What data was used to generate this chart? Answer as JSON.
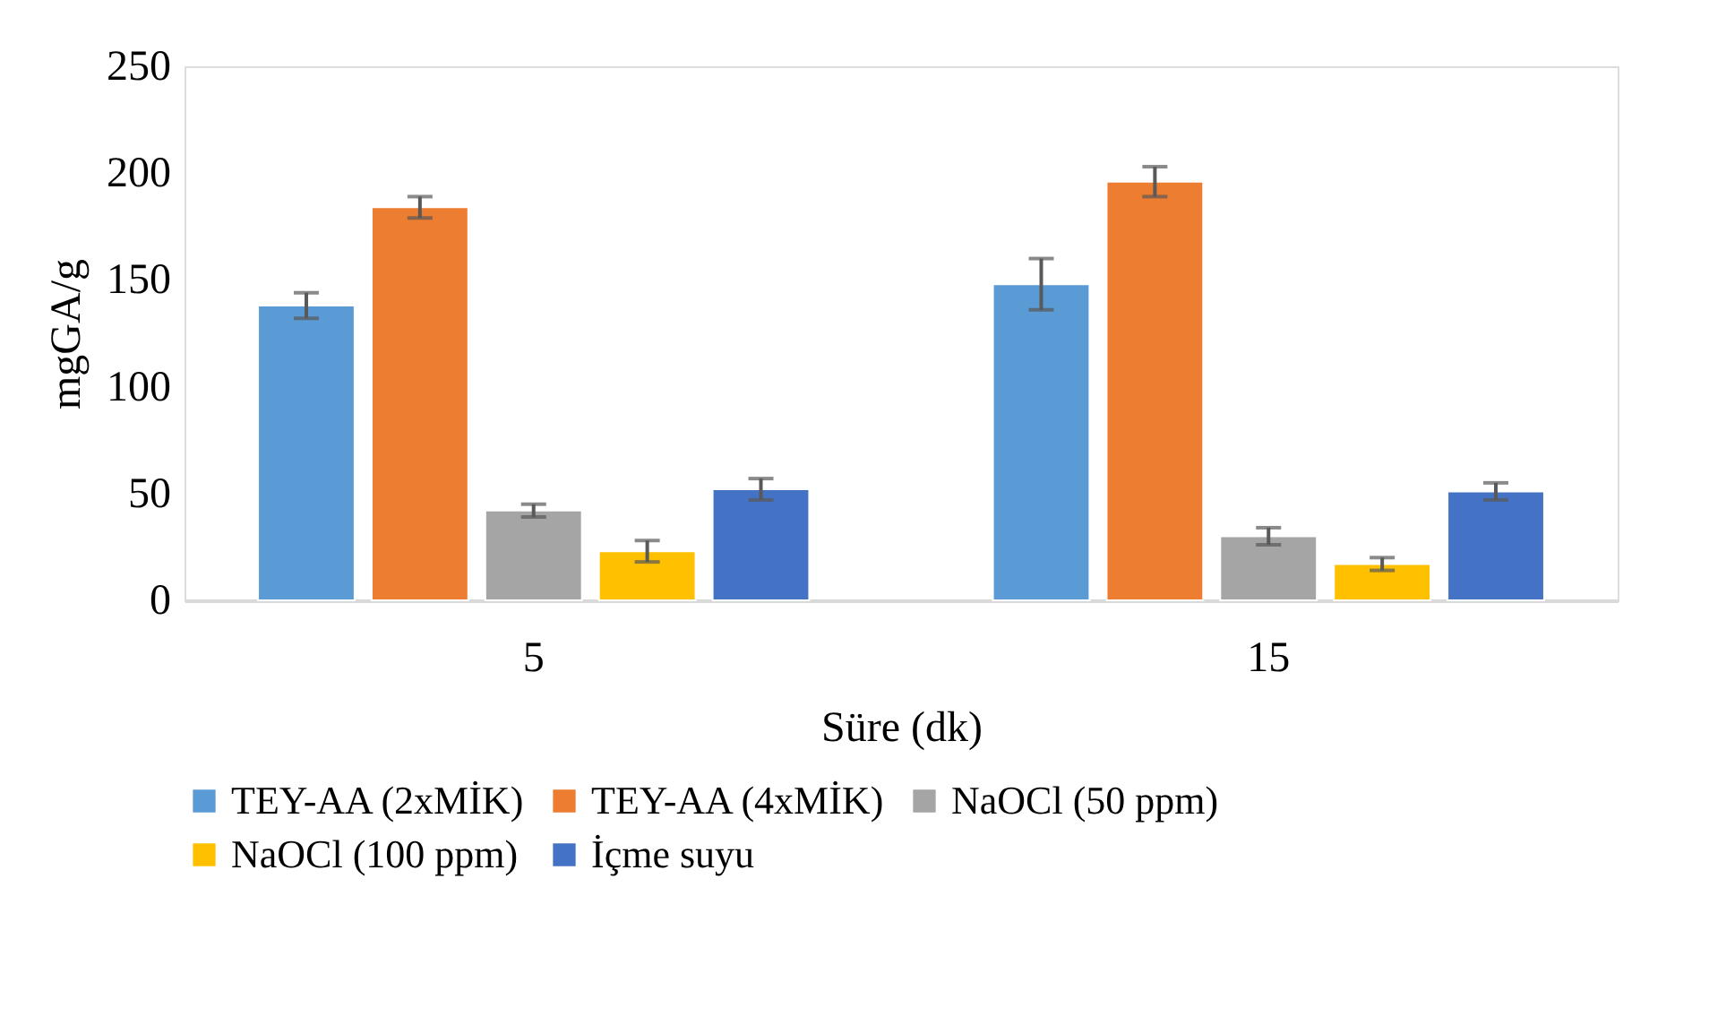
{
  "chart_data": {
    "type": "bar",
    "xlabel": "Süre (dk)",
    "ylabel": "mgGA/g",
    "categories": [
      "5",
      "15"
    ],
    "series": [
      {
        "name": "TEY-AA (2xMİK)",
        "color": "#5b9bd5",
        "values": [
          138,
          148
        ],
        "errors": [
          6,
          12
        ]
      },
      {
        "name": "TEY-AA (4xMİK)",
        "color": "#ed7d31",
        "values": [
          184,
          196
        ],
        "errors": [
          5,
          7
        ]
      },
      {
        "name": "NaOCl (50 ppm)",
        "color": "#a5a5a5",
        "values": [
          42,
          30
        ],
        "errors": [
          3,
          4
        ]
      },
      {
        "name": "NaOCl (100 ppm)",
        "color": "#ffc000",
        "values": [
          23,
          17
        ],
        "errors": [
          5,
          3
        ]
      },
      {
        "name": "İçme suyu",
        "color": "#4472c4",
        "values": [
          52,
          51
        ],
        "errors": [
          5,
          4
        ]
      }
    ],
    "ylim": [
      0,
      250
    ],
    "yticks": [
      0,
      50,
      100,
      150,
      200,
      250
    ],
    "grid": false,
    "legend": "bottom"
  }
}
